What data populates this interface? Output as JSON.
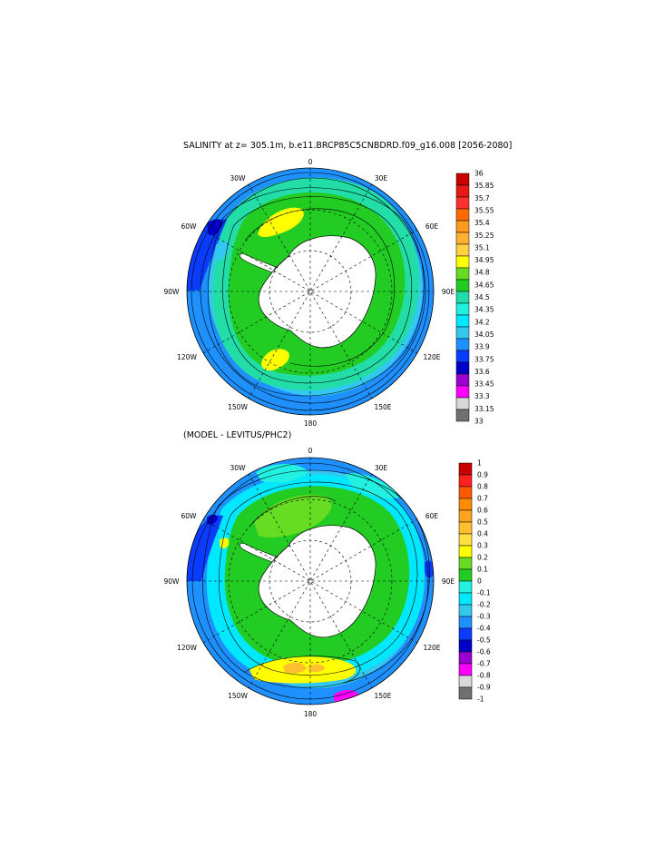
{
  "panels": [
    {
      "title": "SALINITY at z= 305.1m, b.e11.BRCP85C5CNBDRD.f09_g16.008 [2056-2080]",
      "lon_labels": {
        "top": "0",
        "top_right": "30E",
        "right_upper": "60E",
        "right": "90E",
        "right_lower": "120E",
        "bottom_right": "150E",
        "bottom": "180",
        "bottom_left": "150W",
        "left_lower": "120W",
        "left": "90W",
        "left_upper": "60W",
        "top_left": "30W"
      },
      "colorbar": {
        "labels": [
          "36",
          "35.85",
          "35.7",
          "35.55",
          "35.4",
          "35.25",
          "35.1",
          "34.95",
          "34.8",
          "34.65",
          "34.5",
          "34.35",
          "34.2",
          "34.05",
          "33.9",
          "33.75",
          "33.6",
          "33.45",
          "33.3",
          "33.15",
          "33"
        ],
        "colors": [
          "#c80000",
          "#e81818",
          "#ff3030",
          "#ff6a00",
          "#ff9a1a",
          "#ffb030",
          "#ffd040",
          "#ffff00",
          "#66dd22",
          "#22cc22",
          "#22dda8",
          "#22f0e0",
          "#00e8ff",
          "#33c8f0",
          "#1e90ff",
          "#0a3cff",
          "#0000c8",
          "#9a00d0",
          "#ff00ff",
          "#d8d8d8",
          "#707070"
        ]
      }
    },
    {
      "title": "(MODEL - LEVITUS/PHC2)",
      "lon_labels": {
        "top": "0",
        "top_right": "30E",
        "right_upper": "60E",
        "right": "90E",
        "right_lower": "120E",
        "bottom_right": "150E",
        "bottom": "180",
        "bottom_left": "150W",
        "left_lower": "120W",
        "left": "90W",
        "left_upper": "60W",
        "top_left": "30W"
      },
      "colorbar": {
        "labels": [
          "1",
          "0.9",
          "0.8",
          "0.7",
          "0.6",
          "0.5",
          "0.4",
          "0.3",
          "0.2",
          "0.1",
          "0",
          "-0.1",
          "-0.2",
          "-0.3",
          "-0.4",
          "-0.5",
          "-0.6",
          "-0.7",
          "-0.8",
          "-0.9",
          "-1"
        ],
        "colors": [
          "#c80000",
          "#ff2020",
          "#ff5a00",
          "#ff8c00",
          "#ffa520",
          "#ffc030",
          "#ffe040",
          "#ffff00",
          "#66dd22",
          "#22cc22",
          "#22f0e0",
          "#00e8ff",
          "#33c8f0",
          "#1e90ff",
          "#0a3cff",
          "#0000c8",
          "#9a00d0",
          "#ff00ff",
          "#d8d8d8",
          "#707070"
        ]
      }
    }
  ]
}
